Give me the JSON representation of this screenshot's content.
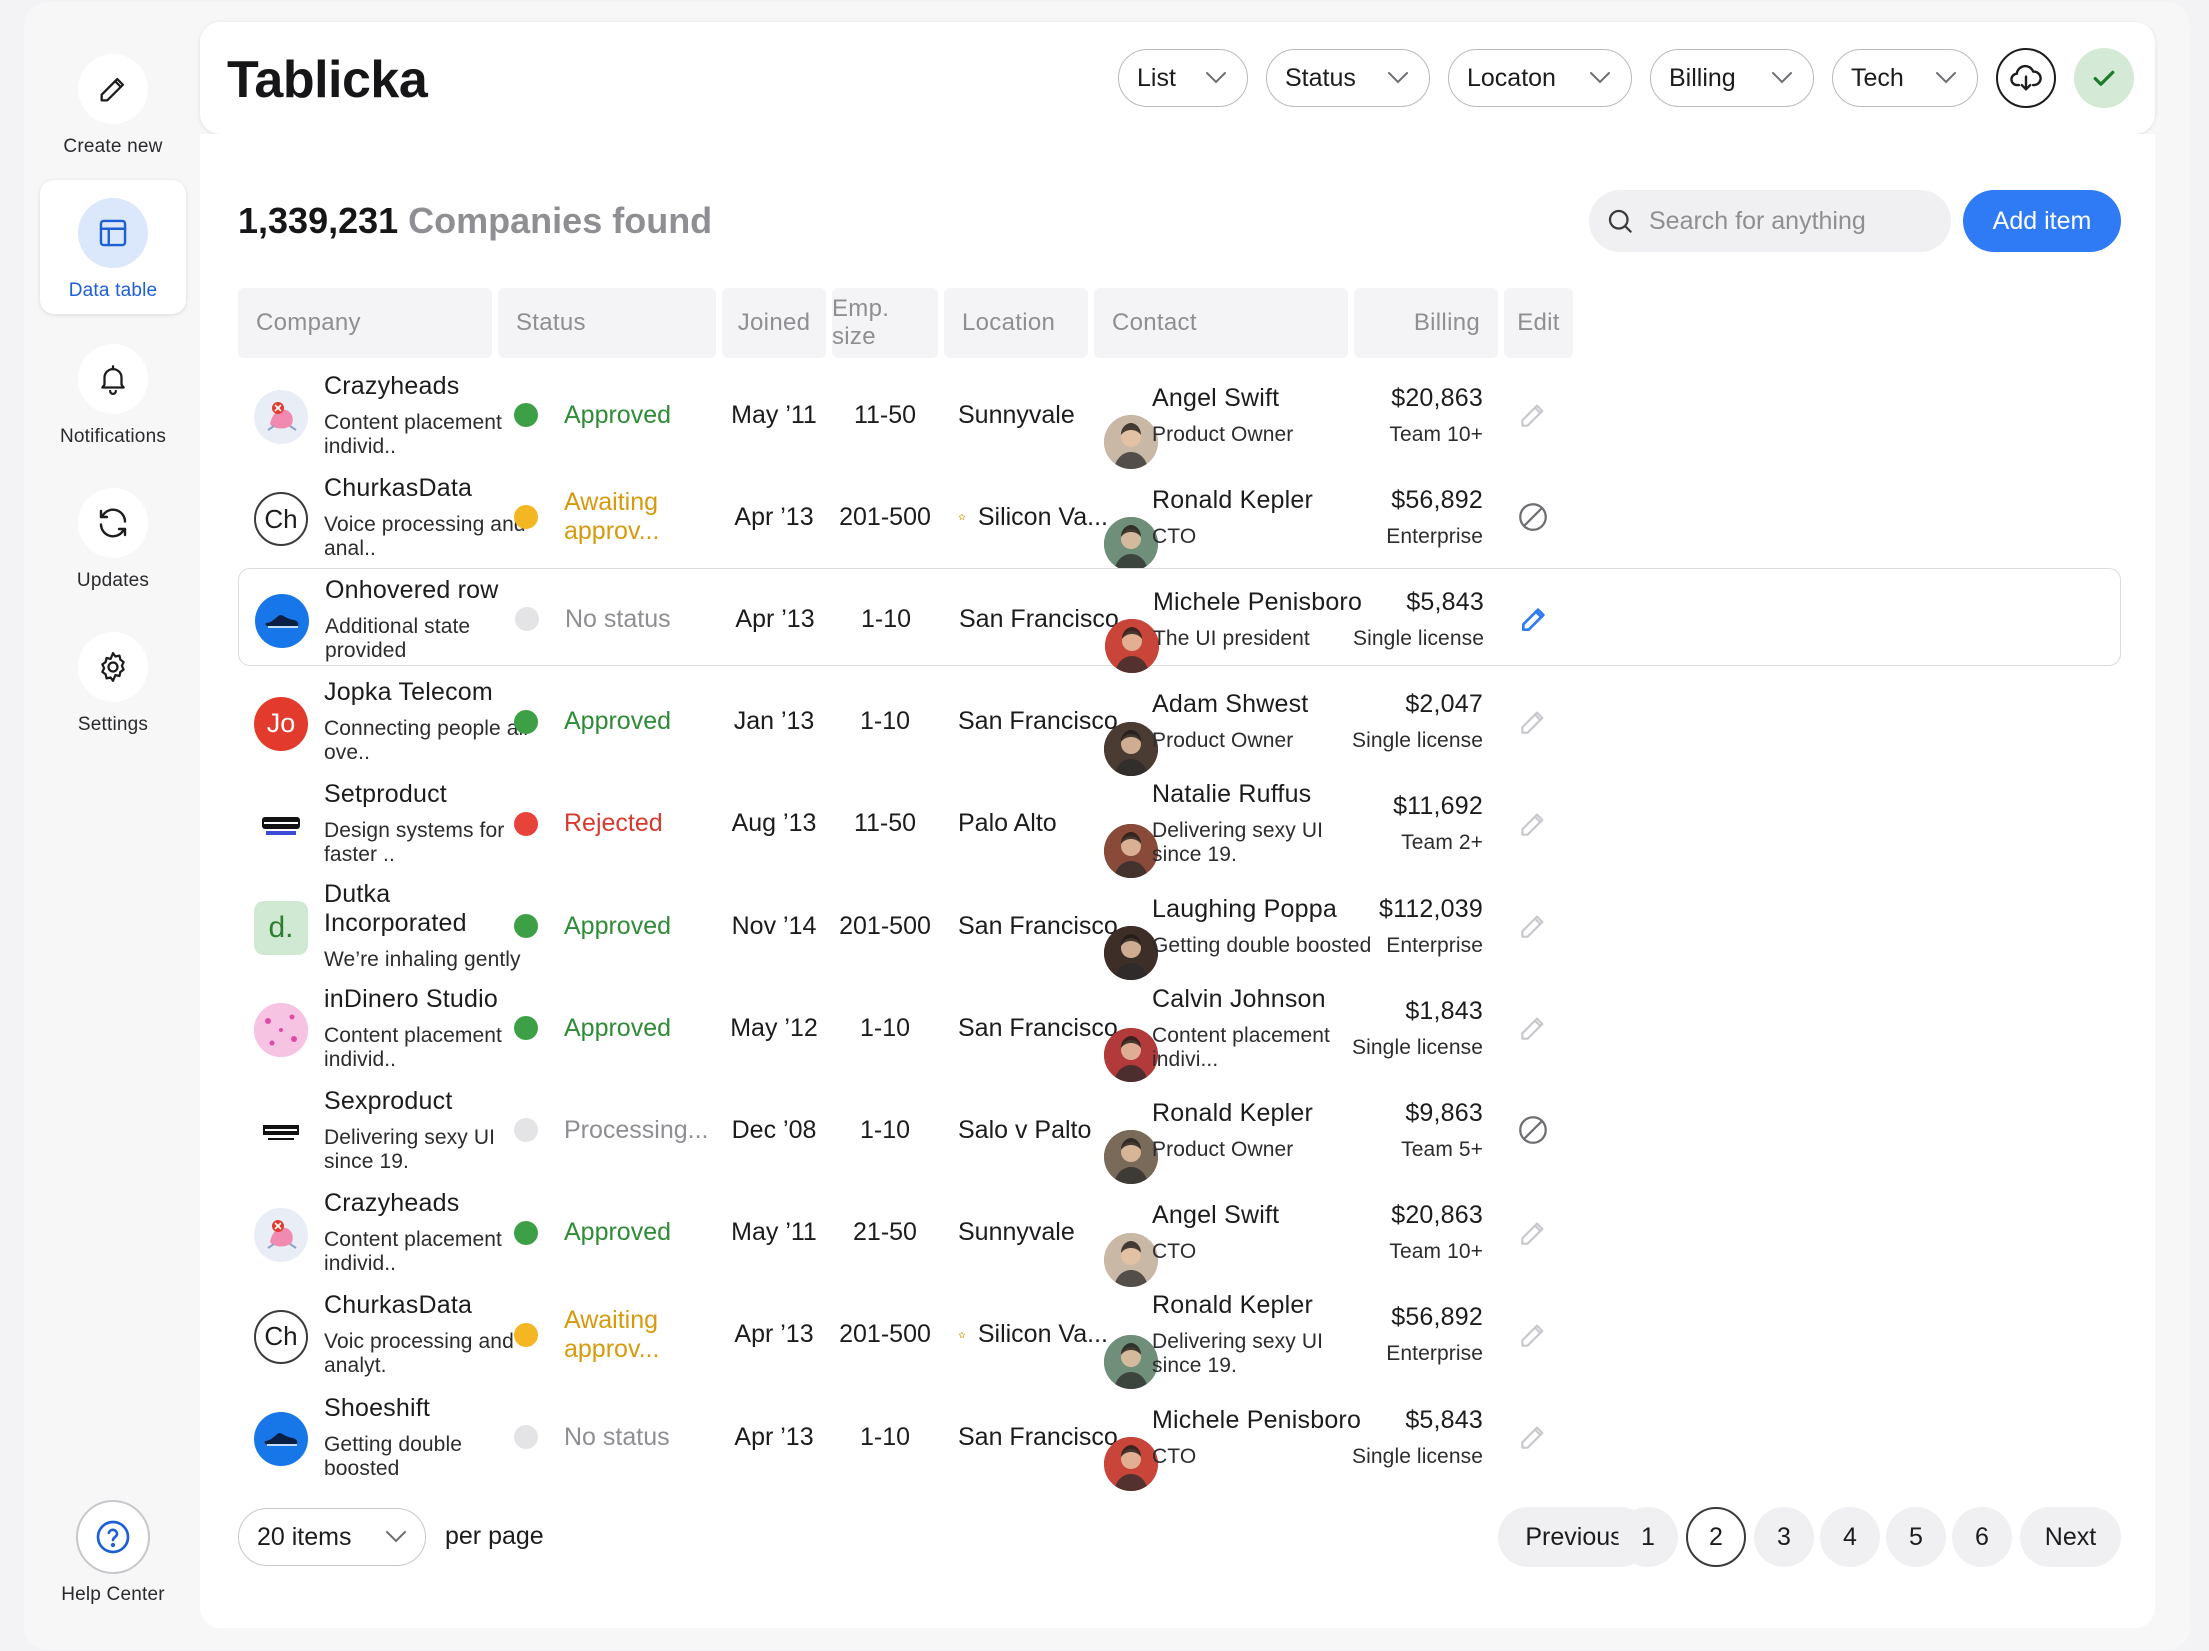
{
  "app": {
    "title": "Tablicka"
  },
  "sidebar": {
    "items": [
      {
        "label": "Create new",
        "icon": "pencil-icon"
      },
      {
        "label": "Data table",
        "icon": "table-icon",
        "active": true
      },
      {
        "label": "Notifications",
        "icon": "bell-icon"
      },
      {
        "label": "Updates",
        "icon": "refresh-icon"
      },
      {
        "label": "Settings",
        "icon": "gear-icon"
      }
    ],
    "help": {
      "label": "Help Center",
      "icon": "question-icon"
    }
  },
  "header": {
    "filters": [
      "List",
      "Status",
      "Locaton",
      "Billing",
      "Tech"
    ],
    "download_icon": "cloud-download-icon",
    "confirm_icon": "check-icon"
  },
  "summary": {
    "count": "1,339,231",
    "suffix": "Companies found"
  },
  "search": {
    "placeholder": "Search for anything",
    "value": ""
  },
  "add_button": "Add item",
  "colors": {
    "accent": "#2f7bf5",
    "approved": "#3ea046",
    "awaiting": "#f5b623",
    "rejected": "#e8433a",
    "no_status": "#e4e4e6",
    "approved_text": "#2e8b36",
    "awaiting_text": "#d69a0c",
    "rejected_text": "#d63a30",
    "muted_text": "#8e8e93"
  },
  "table": {
    "columns": [
      "Company",
      "Status",
      "Joined",
      "Emp. size",
      "Location",
      "Contact",
      "Billing",
      "Edit"
    ],
    "rows": [
      {
        "company": "Crazyheads",
        "desc": "Content placement individ..",
        "logo": "crazyheads",
        "status": "Approved",
        "status_kind": "approved",
        "joined": "May ’11",
        "size": "11-50",
        "location": "Sunnyvale",
        "starred": false,
        "contact": "Angel Swift",
        "role": "Product Owner",
        "billing": "$20,863",
        "plan": "Team 10+",
        "edit": "pencil-icon"
      },
      {
        "company": "ChurkasData",
        "desc": "Voice processing and anal..",
        "logo": "Ch",
        "status": "Awaiting approv...",
        "status_kind": "awaiting",
        "joined": "Apr ’13",
        "size": "201-500",
        "location": "Silicon Va...",
        "starred": true,
        "contact": "Ronald Kepler",
        "role": "CTO",
        "billing": "$56,892",
        "plan": "Enterprise",
        "edit": "blocked-icon"
      },
      {
        "company": "Onhovered row",
        "desc": "Additional state provided",
        "logo": "shoe",
        "status": "No status",
        "status_kind": "none",
        "joined": "Apr ’13",
        "size": "1-10",
        "location": "San Francisco",
        "starred": false,
        "contact": "Michele Penisboro",
        "role": "The UI president",
        "billing": "$5,843",
        "plan": "Single license",
        "edit": "pencil-active-icon",
        "hover": true
      },
      {
        "company": "Jopka Telecom",
        "desc": "Connecting people all ove..",
        "logo": "Jo",
        "status": "Approved",
        "status_kind": "approved",
        "joined": "Jan ’13",
        "size": "1-10",
        "location": "San Francisco",
        "starred": false,
        "contact": "Adam Shwest",
        "role": "Product Owner",
        "billing": "$2,047",
        "plan": "Single license",
        "edit": "pencil-icon"
      },
      {
        "company": "Setproduct",
        "desc": "Design systems for faster ..",
        "logo": "setproduct",
        "status": "Rejected",
        "status_kind": "rejected",
        "joined": "Aug ’13",
        "size": "11-50",
        "location": "Palo Alto",
        "starred": false,
        "contact": "Natalie Ruffus",
        "role": "Delivering sexy UI since 19.",
        "billing": "$11,692",
        "plan": "Team 2+",
        "edit": "pencil-icon"
      },
      {
        "company": "Dutka Incorporated",
        "desc": "We’re inhaling gently",
        "logo": "d.",
        "status": "Approved",
        "status_kind": "approved",
        "joined": "Nov ’14",
        "size": "201-500",
        "location": "San Francisco",
        "starred": false,
        "contact": "Laughing Poppa",
        "role": "Getting double boosted",
        "billing": "$112,039",
        "plan": "Enterprise",
        "edit": "pencil-icon"
      },
      {
        "company": "inDinero Studio",
        "desc": "Content placement individ..",
        "logo": "indinero",
        "status": "Approved",
        "status_kind": "approved",
        "joined": "May ’12",
        "size": "1-10",
        "location": "San Francisco",
        "starred": false,
        "contact": "Calvin Johnson",
        "role": "Content placement indivi...",
        "billing": "$1,843",
        "plan": "Single license",
        "edit": "pencil-icon"
      },
      {
        "company": "Sexproduct",
        "desc": "Delivering sexy UI since 19.",
        "logo": "sexproduct",
        "status": "Processing...",
        "status_kind": "none",
        "joined": "Dec ’08",
        "size": "1-10",
        "location": "Salo v Palto",
        "starred": false,
        "contact": "Ronald Kepler",
        "role": "Product Owner",
        "billing": "$9,863",
        "plan": "Team 5+",
        "edit": "blocked-icon"
      },
      {
        "company": "Crazyheads",
        "desc": "Content placement individ..",
        "logo": "crazyheads",
        "status": "Approved",
        "status_kind": "approved",
        "joined": "May ’11",
        "size": "21-50",
        "location": "Sunnyvale",
        "starred": false,
        "contact": "Angel Swift",
        "role": "CTO",
        "billing": "$20,863",
        "plan": "Team 10+",
        "edit": "pencil-icon"
      },
      {
        "company": "ChurkasData",
        "desc": "Voic processing and analyt.",
        "logo": "Ch",
        "status": "Awaiting approv...",
        "status_kind": "awaiting",
        "joined": "Apr ’13",
        "size": "201-500",
        "location": "Silicon Va...",
        "starred": true,
        "contact": "Ronald Kepler",
        "role": "Delivering sexy UI since 19.",
        "billing": "$56,892",
        "plan": "Enterprise",
        "edit": "pencil-icon"
      },
      {
        "company": "Shoeshift",
        "desc": "Getting double boosted",
        "logo": "shoe",
        "status": "No status",
        "status_kind": "none",
        "joined": "Apr ’13",
        "size": "1-10",
        "location": "San Francisco",
        "starred": false,
        "contact": "Michele Penisboro",
        "role": "CTO",
        "billing": "$5,843",
        "plan": "Single license",
        "edit": "pencil-icon"
      }
    ]
  },
  "pagination": {
    "per_page_value": "20 items",
    "per_page_label": "per page",
    "previous": "Previous",
    "next": "Next",
    "pages": [
      "1",
      "2",
      "3",
      "4",
      "5",
      "6"
    ],
    "current": "2"
  }
}
